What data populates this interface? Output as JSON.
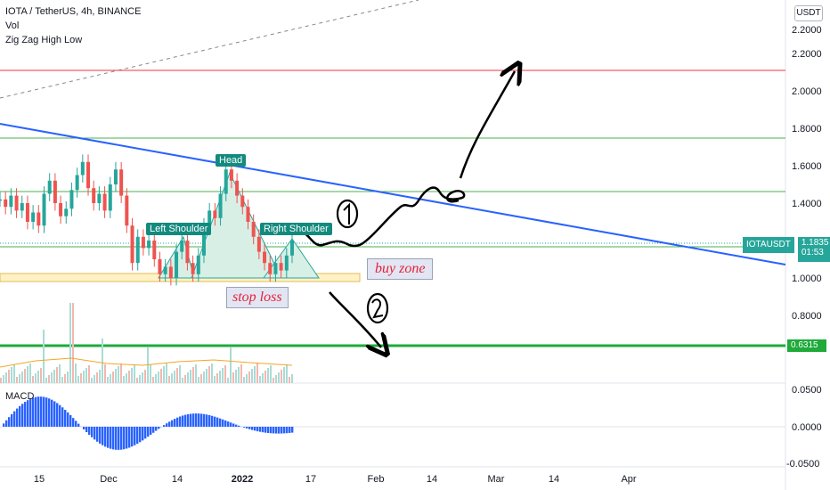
{
  "header": {
    "symbol_line": "IOTA / TetherUS, 4h, BINANCE",
    "indicator_vol": "Vol",
    "indicator_zigzag": "Zig Zag High Low",
    "currency_button": "USDT"
  },
  "price_tag": {
    "symbol": "IOTAUSDT",
    "price": "1.1835",
    "countdown": "01:53"
  },
  "level_tag": "0.6315",
  "macd_label": "MACD",
  "annotations": {
    "head": "Head",
    "left_shoulder": "Left Shoulder",
    "right_shoulder": "Right Shoulder",
    "buy_zone": "buy zone",
    "stop_loss": "stop loss"
  },
  "colors": {
    "trendline": "#2962ff",
    "resistance_red": "#f23645",
    "level_green": "#4caf50",
    "strong_green": "#1faa3a",
    "candle_up": "#26a69a",
    "candle_down": "#ef5350",
    "macd_bar": "#2962ff",
    "buy_zone_fill": "#fff2c4",
    "pattern_fill": "#d8efe6"
  },
  "chart_data": {
    "type": "line",
    "price_axis": {
      "ticks": [
        "2.2000",
        "2.0000",
        "1.8000",
        "1.6000",
        "1.4000",
        "1.2000",
        "1.0000",
        "0.8000"
      ],
      "tick_values": [
        2.2,
        2.0,
        1.8,
        1.6,
        1.4,
        1.2,
        1.0,
        0.8
      ],
      "ylim": [
        0.58,
        2.38
      ],
      "log_scale": false
    },
    "macd_axis": {
      "ticks": [
        "0.0500",
        "0.0000",
        "-0.0500"
      ],
      "tick_values": [
        0.05,
        0.0,
        -0.05
      ]
    },
    "x_ticks": [
      "15",
      "Dec",
      "14",
      "2022",
      "17",
      "Feb",
      "14",
      "Mar",
      "14",
      "Apr"
    ],
    "horizontal_levels": [
      {
        "value": 2.11,
        "color": "red"
      },
      {
        "value": 1.75,
        "color": "green"
      },
      {
        "value": 1.46,
        "color": "green"
      },
      {
        "value": 1.17,
        "color": "green"
      },
      {
        "value": 0.6315,
        "color": "green-thick"
      }
    ],
    "trendline": {
      "from": [
        0,
        1.84
      ],
      "to": [
        1,
        1.05
      ]
    },
    "close_series": [
      1.42,
      1.38,
      1.44,
      1.36,
      1.4,
      1.3,
      1.35,
      1.28,
      1.45,
      1.52,
      1.4,
      1.33,
      1.37,
      1.47,
      1.55,
      1.62,
      1.48,
      1.4,
      1.45,
      1.36,
      1.5,
      1.58,
      1.44,
      1.28,
      1.08,
      1.22,
      1.16,
      1.2,
      1.1,
      1.02,
      1.06,
      1.0,
      1.14,
      1.2,
      1.08,
      1.02,
      1.12,
      1.28,
      1.36,
      1.32,
      1.45,
      1.58,
      1.52,
      1.44,
      1.38,
      1.3,
      1.22,
      1.14,
      1.08,
      1.02,
      1.08,
      1.04,
      1.12,
      1.2
    ]
  }
}
